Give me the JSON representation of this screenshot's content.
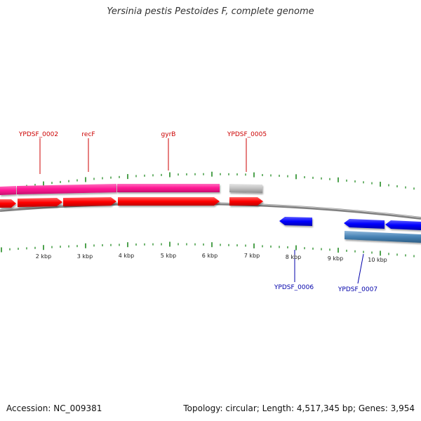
{
  "title": "Yersinia pestis Pestoides F, complete genome",
  "footer": {
    "accession": "Accession: NC_009381",
    "summary": "Topology: circular; Length: 4,517,345 bp; Genes: 3,954"
  },
  "colors": {
    "forward_cds": "#ff0000",
    "forward_gene": "#ff1493",
    "reverse_cds": "#0000ff",
    "reverse_gene": "#4682b4",
    "other_gene": "#bbbbbb",
    "tick": "#228b22",
    "backbone": "#808080",
    "forward_label": "#cc0000",
    "reverse_label": "#0000aa"
  },
  "kbp_labels": [
    "2 kbp",
    "3 kbp",
    "4 kbp",
    "5 kbp",
    "6 kbp",
    "7 kbp",
    "8 kbp",
    "9 kbp",
    "10 kbp"
  ],
  "forward_features": [
    {
      "label": "YPDSF_0002"
    },
    {
      "label": "recF"
    },
    {
      "label": "gyrB"
    },
    {
      "label": "YPDSF_0005"
    }
  ],
  "reverse_features": [
    {
      "label": "YPDSF_0006"
    },
    {
      "label": "YPDSF_0007"
    }
  ]
}
